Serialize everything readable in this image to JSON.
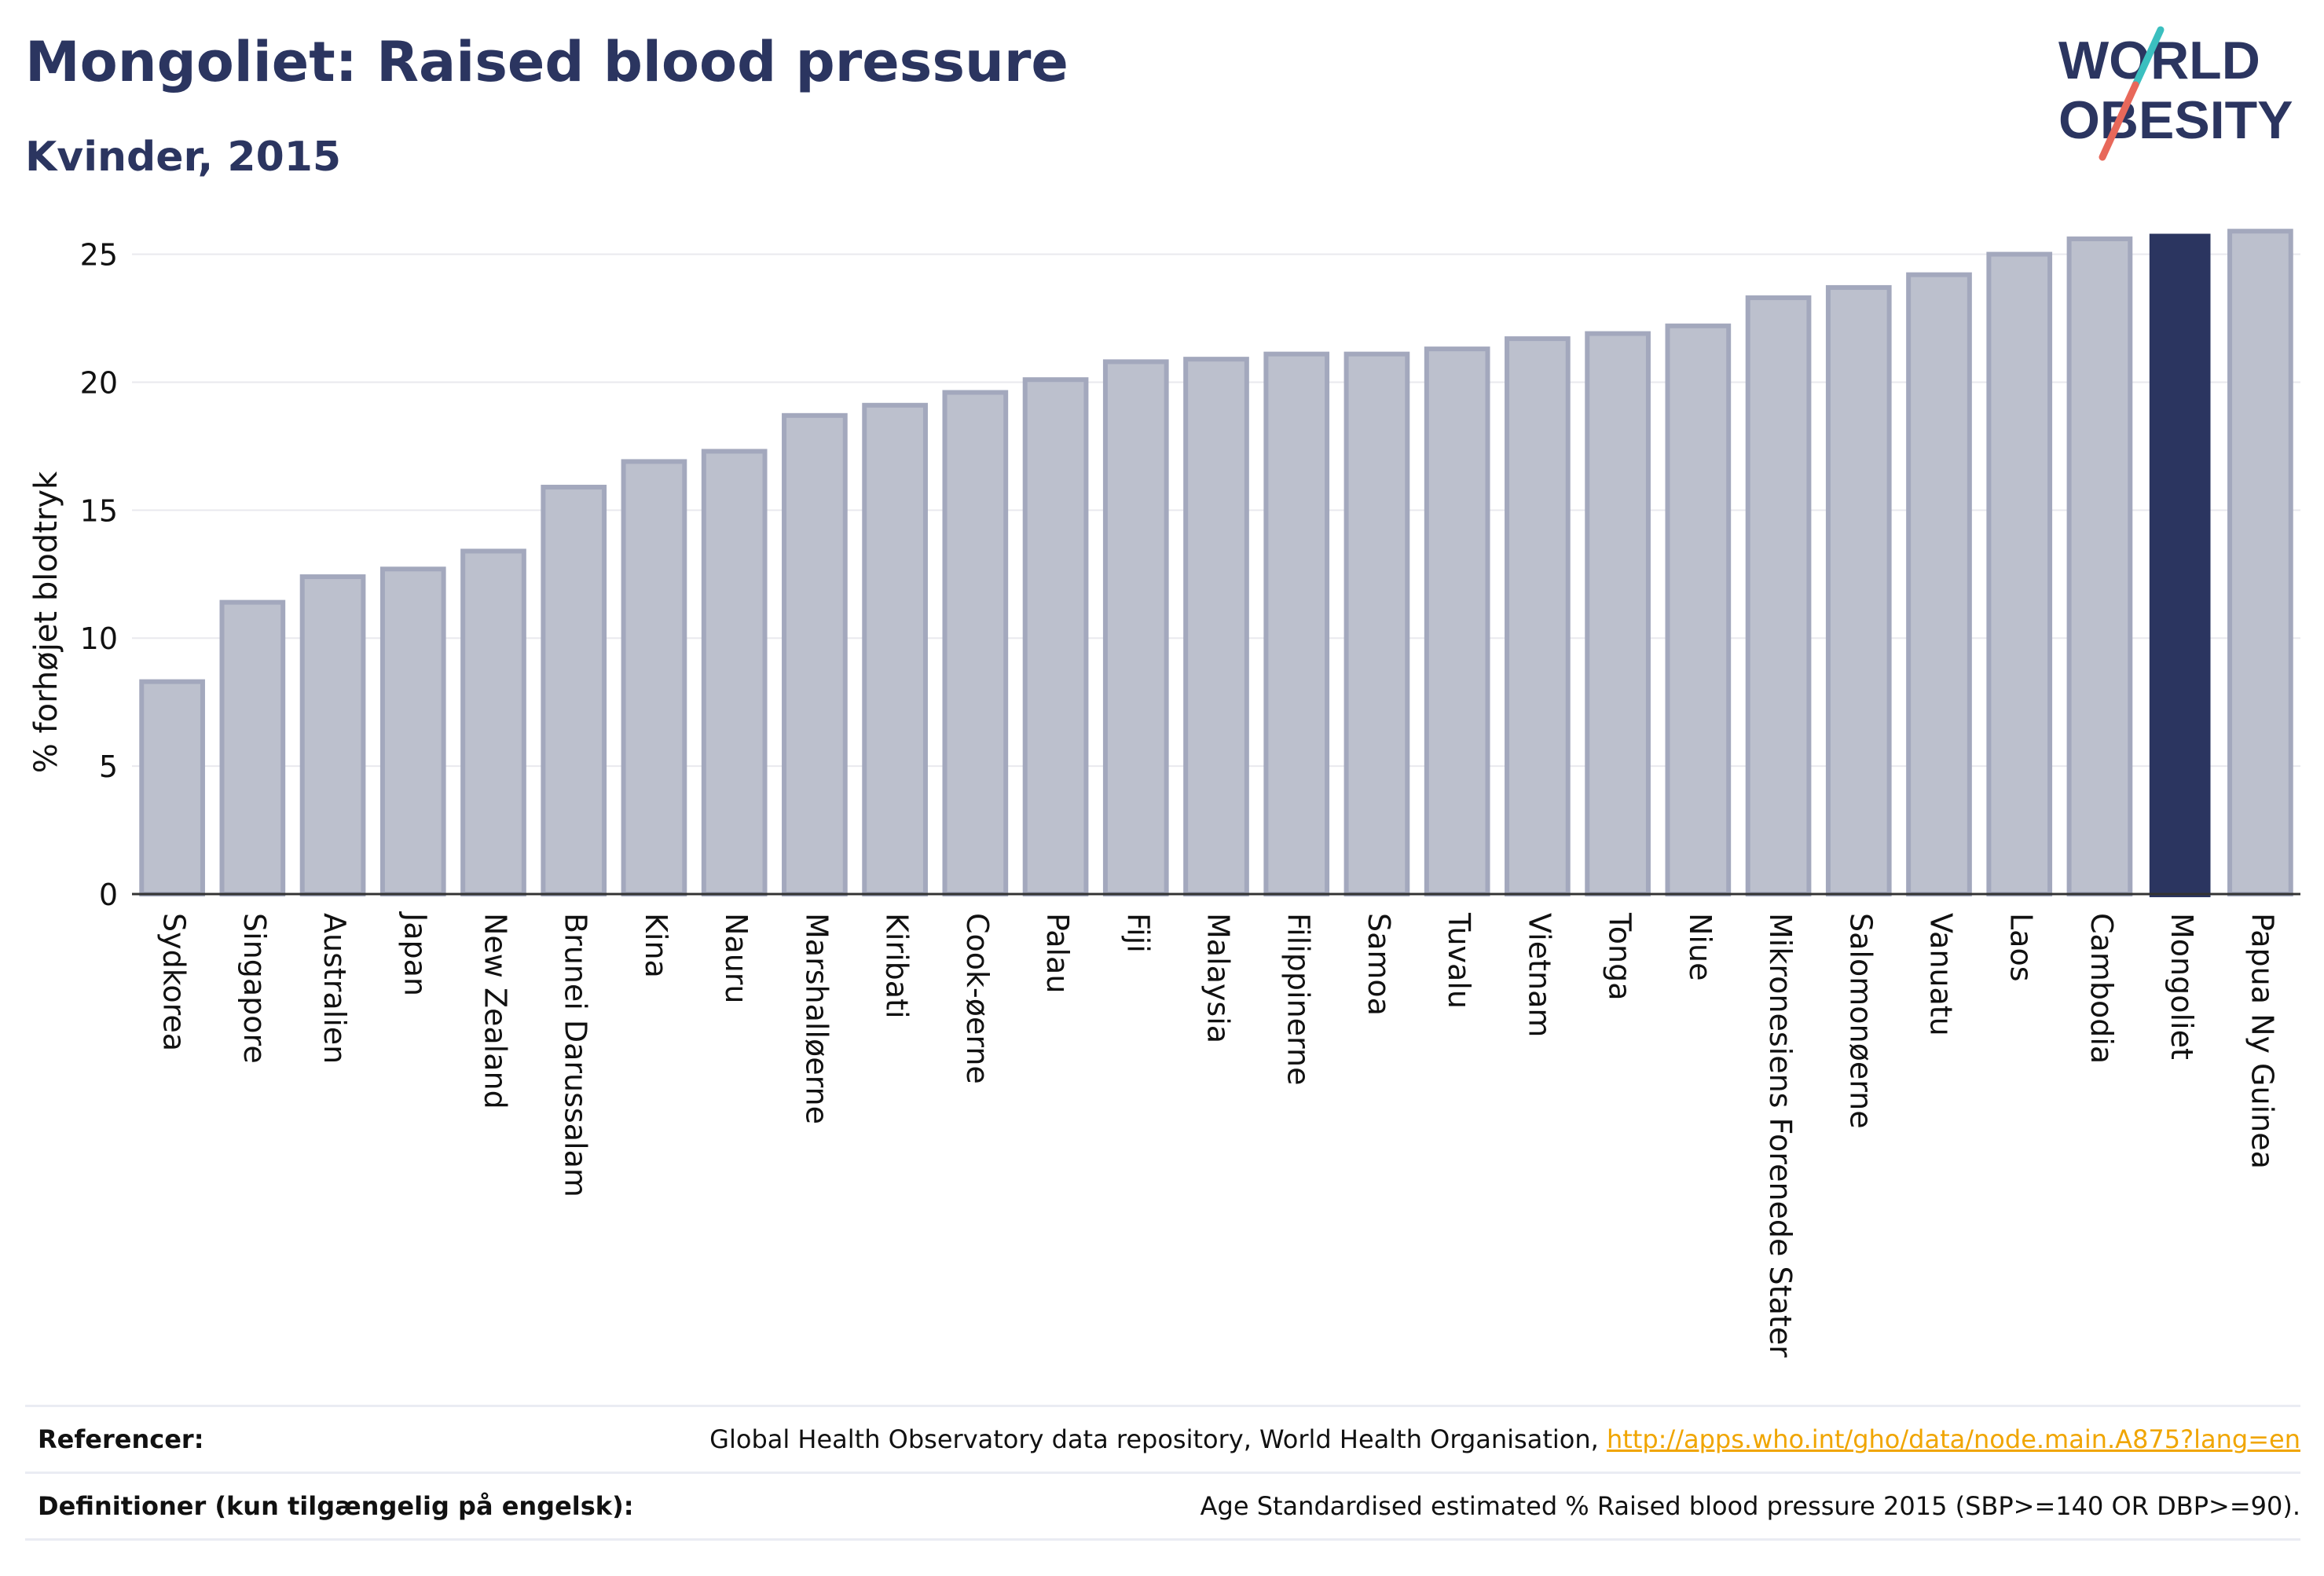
{
  "header": {
    "title": "Mongoliet: Raised blood pressure",
    "subtitle": "Kvinder, 2015"
  },
  "logo": {
    "line1": "WORLD",
    "line2": "OBESITY"
  },
  "colors": {
    "highlight": "#2b3560",
    "bar_fill": "#bcc0cd",
    "bar_stroke": "#a3a8bd",
    "grid": "#e9e9ee",
    "logo_text": "#2b3560",
    "logo_slash_top": "#3bbfbf",
    "logo_slash_bottom": "#e8685a"
  },
  "chart_data": {
    "type": "bar",
    "ylabel": "% forhøjet blodtryk",
    "ylim": [
      0,
      26
    ],
    "yticks": [
      0,
      5,
      10,
      15,
      20,
      25
    ],
    "grid": true,
    "highlight": "Mongoliet",
    "categories": [
      "Sydkorea",
      "Singapore",
      "Australien",
      "Japan",
      "New Zealand",
      "Brunei Darussalam",
      "Kina",
      "Nauru",
      "Marshalløerne",
      "Kiribati",
      "Cook-øerne",
      "Palau",
      "Fiji",
      "Malaysia",
      "Filippinerne",
      "Samoa",
      "Tuvalu",
      "Vietnam",
      "Tonga",
      "Niue",
      "Mikronesiens Forenede Stater",
      "Salomonøerne",
      "Vanuatu",
      "Laos",
      "Cambodia",
      "Mongoliet",
      "Papua Ny Guinea"
    ],
    "values": [
      8.3,
      11.4,
      12.4,
      12.7,
      13.4,
      15.9,
      16.9,
      17.3,
      18.7,
      19.1,
      19.6,
      20.1,
      20.8,
      20.9,
      21.1,
      21.1,
      21.3,
      21.7,
      21.9,
      22.2,
      23.3,
      23.7,
      24.2,
      25.0,
      25.6,
      25.8,
      25.9
    ]
  },
  "references": {
    "refs_label": "Referencer:",
    "refs_text": "Global Health Observatory data repository, World Health Organisation, ",
    "refs_link": "http://apps.who.int/gho/data/node.main.A875?lang=en",
    "defs_label": "Definitioner (kun tilgængelig på engelsk):",
    "defs_text": "Age Standardised estimated % Raised blood pressure 2015 (SBP>=140 OR DBP>=90)."
  }
}
